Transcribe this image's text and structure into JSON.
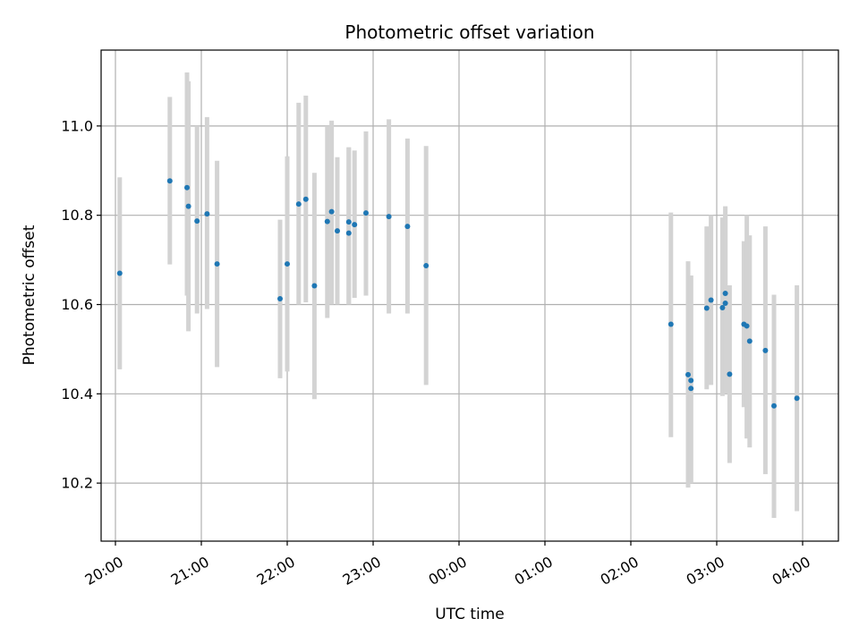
{
  "chart_data": {
    "type": "scatter",
    "title": "Photometric offset variation",
    "xlabel": "UTC time",
    "ylabel": "Photometric offset",
    "grid": true,
    "xlim": [
      "19:50",
      "04:25"
    ],
    "ylim": [
      10.07,
      11.17
    ],
    "x_ticks": [
      "20:00",
      "21:00",
      "22:00",
      "23:00",
      "00:00",
      "01:00",
      "02:00",
      "03:00",
      "04:00"
    ],
    "y_ticks": [
      "10.2",
      "10.4",
      "10.6",
      "10.8",
      "11.0"
    ],
    "point_color": "#1f77b4",
    "errorbar_color": "#d3d3d3",
    "points": [
      {
        "t": "20:03",
        "y": 10.67,
        "lo": 10.455,
        "hi": 10.885
      },
      {
        "t": "20:38",
        "y": 10.877,
        "lo": 10.69,
        "hi": 11.065
      },
      {
        "t": "20:50",
        "y": 10.862,
        "lo": 10.62,
        "hi": 11.12
      },
      {
        "t": "20:51",
        "y": 10.82,
        "lo": 10.54,
        "hi": 11.1
      },
      {
        "t": "20:57",
        "y": 10.787,
        "lo": 10.58,
        "hi": 11.0
      },
      {
        "t": "21:04",
        "y": 10.803,
        "lo": 10.59,
        "hi": 11.02
      },
      {
        "t": "21:11",
        "y": 10.691,
        "lo": 10.46,
        "hi": 10.922
      },
      {
        "t": "21:55",
        "y": 10.613,
        "lo": 10.435,
        "hi": 10.79
      },
      {
        "t": "22:00",
        "y": 10.691,
        "lo": 10.45,
        "hi": 10.932
      },
      {
        "t": "22:08",
        "y": 10.825,
        "lo": 10.6,
        "hi": 11.052
      },
      {
        "t": "22:13",
        "y": 10.836,
        "lo": 10.605,
        "hi": 11.068
      },
      {
        "t": "22:19",
        "y": 10.642,
        "lo": 10.388,
        "hi": 10.895
      },
      {
        "t": "22:28",
        "y": 10.786,
        "lo": 10.57,
        "hi": 11.0
      },
      {
        "t": "22:31",
        "y": 10.808,
        "lo": 10.6,
        "hi": 11.012
      },
      {
        "t": "22:35",
        "y": 10.765,
        "lo": 10.6,
        "hi": 10.93
      },
      {
        "t": "22:43",
        "y": 10.785,
        "lo": 10.6,
        "hi": 10.952
      },
      {
        "t": "22:43",
        "y": 10.76,
        "lo": 10.6,
        "hi": 10.952
      },
      {
        "t": "22:47",
        "y": 10.779,
        "lo": 10.615,
        "hi": 10.945
      },
      {
        "t": "22:55",
        "y": 10.805,
        "lo": 10.62,
        "hi": 10.988
      },
      {
        "t": "23:11",
        "y": 10.797,
        "lo": 10.58,
        "hi": 11.015
      },
      {
        "t": "23:24",
        "y": 10.775,
        "lo": 10.58,
        "hi": 10.972
      },
      {
        "t": "23:37",
        "y": 10.687,
        "lo": 10.42,
        "hi": 10.955
      },
      {
        "t": "02:28",
        "y": 10.556,
        "lo": 10.303,
        "hi": 10.806
      },
      {
        "t": "02:40",
        "y": 10.443,
        "lo": 10.19,
        "hi": 10.697
      },
      {
        "t": "02:42",
        "y": 10.412,
        "lo": 10.2,
        "hi": 10.665
      },
      {
        "t": "02:42",
        "y": 10.43,
        "lo": 10.2,
        "hi": 10.665
      },
      {
        "t": "02:53",
        "y": 10.592,
        "lo": 10.41,
        "hi": 10.775
      },
      {
        "t": "02:56",
        "y": 10.61,
        "lo": 10.42,
        "hi": 10.8
      },
      {
        "t": "03:04",
        "y": 10.593,
        "lo": 10.395,
        "hi": 10.795
      },
      {
        "t": "03:06",
        "y": 10.625,
        "lo": 10.42,
        "hi": 10.82
      },
      {
        "t": "03:06",
        "y": 10.603,
        "lo": 10.4,
        "hi": 10.8
      },
      {
        "t": "03:09",
        "y": 10.444,
        "lo": 10.245,
        "hi": 10.643
      },
      {
        "t": "03:19",
        "y": 10.556,
        "lo": 10.37,
        "hi": 10.742
      },
      {
        "t": "03:21",
        "y": 10.552,
        "lo": 10.3,
        "hi": 10.8
      },
      {
        "t": "03:23",
        "y": 10.518,
        "lo": 10.28,
        "hi": 10.755
      },
      {
        "t": "03:34",
        "y": 10.497,
        "lo": 10.22,
        "hi": 10.775
      },
      {
        "t": "03:40",
        "y": 10.373,
        "lo": 10.122,
        "hi": 10.622
      },
      {
        "t": "03:56",
        "y": 10.39,
        "lo": 10.137,
        "hi": 10.643
      }
    ]
  }
}
